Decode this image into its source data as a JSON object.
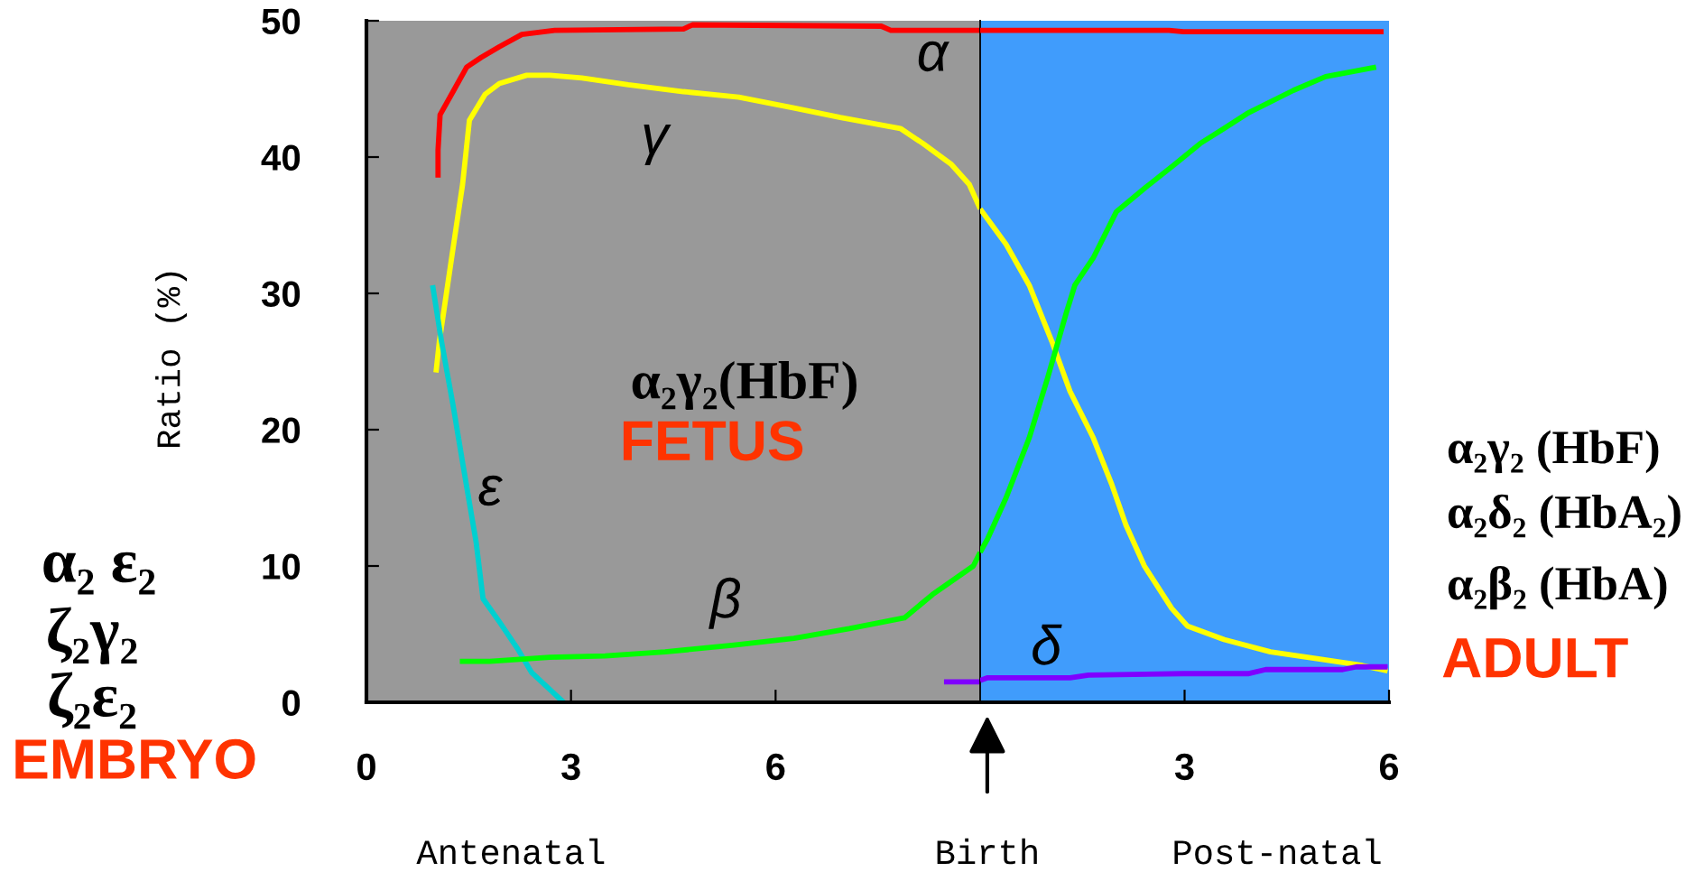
{
  "chart_data": [
    {
      "type": "line",
      "ylabel": "Ratio (%)",
      "line_style": "solid",
      "xlim": [
        0,
        9
      ],
      "xticks": [
        0,
        3,
        6
      ],
      "ylim": [
        0,
        50
      ],
      "yticks": [
        0,
        10,
        20,
        30,
        40,
        50
      ],
      "bands": [
        {
          "axis": "x",
          "from": 0,
          "to": 9,
          "color": "#999999"
        }
      ],
      "series": [
        {
          "name": "α",
          "color": "#ff0000",
          "x": [
            1.05,
            1.05,
            1.08,
            1.27,
            1.47,
            1.68,
            1.95,
            2.28,
            2.76,
            4.65,
            4.78,
            7.55,
            7.69,
            9
          ],
          "values": [
            38.5,
            40.5,
            43.1,
            44.8,
            46.6,
            47.3,
            48.1,
            49.0,
            49.3,
            49.4,
            49.7,
            49.6,
            49.3,
            49.3
          ]
        },
        {
          "name": "γ",
          "color": "#ffff00",
          "x": [
            1.02,
            1.07,
            1.17,
            1.27,
            1.41,
            1.51,
            1.57,
            1.74,
            1.95,
            2.35,
            2.69,
            3.16,
            3.84,
            4.65,
            5.46,
            6.27,
            6.95,
            7.83,
            8.16,
            8.57,
            8.84,
            9
          ],
          "values": [
            24.2,
            26.5,
            29.9,
            33.3,
            38.0,
            42.7,
            43.2,
            44.6,
            45.4,
            46.0,
            46.0,
            45.8,
            45.3,
            44.8,
            44.4,
            43.6,
            42.9,
            42.1,
            41.0,
            39.5,
            38.0,
            36.2
          ]
        },
        {
          "name": "ε",
          "color": "#00d0d0",
          "x": [
            0.97,
            1.1,
            1.27,
            1.44,
            1.61,
            1.71,
            1.95,
            2.22,
            2.42,
            2.89
          ],
          "values": [
            30.6,
            26.5,
            21.8,
            16.7,
            11.7,
            7.6,
            5.9,
            3.9,
            2.2,
            0
          ]
        },
        {
          "name": "β",
          "color": "#00ff00",
          "x": [
            1.37,
            1.81,
            2.69,
            3.5,
            4.38,
            5.39,
            6.27,
            7.08,
            7.89,
            8.3,
            8.9,
            9
          ],
          "values": [
            3.0,
            3.0,
            3.3,
            3.4,
            3.7,
            4.2,
            4.7,
            5.4,
            6.2,
            7.9,
            10.0,
            11.0
          ]
        },
        {
          "color": "#7f00ff",
          "x": [
            8.47,
            9
          ],
          "values": [
            1.5,
            1.5
          ]
        }
      ],
      "annotations": [
        "α₂γ₂(HbF)",
        "FETUS",
        "α₂ ε₂",
        "ζ₂γ₂",
        "ζ₂ε₂",
        "EMBRYO",
        "Antenatal"
      ]
    },
    {
      "type": "line",
      "line_style": "solid",
      "tick_labels": "x",
      "xlim": [
        0,
        6
      ],
      "xticks": [
        3,
        6
      ],
      "ylim": [
        0,
        50
      ],
      "bands": [
        {
          "axis": "x",
          "from": 0,
          "to": 6,
          "color": "#409cfc"
        }
      ],
      "series": [
        {
          "color": "#ff0000",
          "x": [
            0,
            2.77,
            2.98,
            5.92
          ],
          "values": [
            49.3,
            49.3,
            49.2,
            49.2
          ]
        },
        {
          "color": "#ffff00",
          "x": [
            0,
            0.38,
            0.72,
            1.05,
            1.32,
            1.66,
            1.93,
            2.14,
            2.41,
            2.81,
            3.04,
            3.58,
            4.26,
            4.94,
            5.61,
            5.98
          ],
          "values": [
            36.2,
            33.6,
            30.6,
            26.5,
            22.8,
            19.4,
            16.0,
            13.0,
            10.0,
            6.9,
            5.6,
            4.6,
            3.7,
            3.2,
            2.7,
            2.3
          ]
        },
        {
          "color": "#00ff00",
          "x": [
            0,
            0.11,
            0.38,
            0.72,
            0.99,
            1.26,
            1.39,
            1.66,
            2.0,
            2.41,
            2.84,
            3.23,
            3.58,
            3.92,
            4.6,
            5.07,
            5.81
          ],
          "values": [
            11.0,
            12.0,
            15.0,
            19.4,
            23.8,
            28.5,
            30.6,
            32.6,
            36.0,
            37.7,
            39.4,
            41.0,
            42.1,
            43.2,
            44.9,
            45.9,
            46.6
          ]
        },
        {
          "name": "δ",
          "color": "#7f00ff",
          "x": [
            0,
            0.11,
            1.32,
            1.59,
            2.98,
            3.93,
            4.19,
            5.32,
            5.52,
            5.98
          ],
          "values": [
            1.6,
            1.8,
            1.8,
            2.0,
            2.1,
            2.1,
            2.4,
            2.4,
            2.6,
            2.6
          ]
        }
      ],
      "annotations": [
        "Birth",
        "α₂γ₂ (HbF)",
        "α₂δ₂ (HbA₂)",
        "α₂β₂ (HbA)",
        "ADULT",
        "Post-natal"
      ]
    }
  ]
}
